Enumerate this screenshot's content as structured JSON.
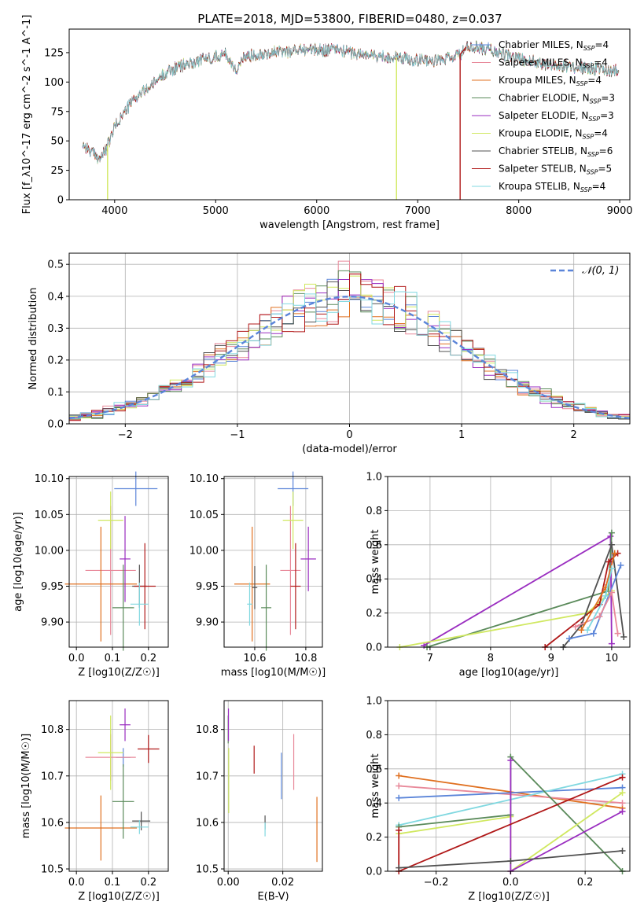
{
  "figure": {
    "title": "PLATE=2018, MJD=53800, FIBERID=0480, z=0.037"
  },
  "colors": {
    "Chabrier MILES": "#5b85d9",
    "Salpeter MILES": "#e8899a",
    "Kroupa MILES": "#e07020",
    "Chabrier ELODIE": "#5a8a5a",
    "Salpeter ELODIE": "#9a2dc0",
    "Kroupa ELODIE": "#d0e860",
    "Chabrier STELIB": "#505050",
    "Salpeter STELIB": "#b01818",
    "Kroupa STELIB": "#80d8e0",
    "normal": "#5b85d9"
  },
  "chart_data": [
    {
      "id": "spectrum",
      "type": "line",
      "xlabel": "wavelength [Angstrom, rest frame]",
      "ylabel": "Flux [f_λ10^-17 erg cm^-2 s^-1 A^-1]",
      "xlim": [
        3550,
        9100
      ],
      "ylim": [
        0,
        145
      ],
      "xticks": [
        4000,
        5000,
        6000,
        7000,
        8000,
        9000
      ],
      "yticks": [
        0,
        25,
        50,
        75,
        100,
        125
      ],
      "legend_position": "upper right",
      "legend": [
        {
          "label": "Chabrier MILES, N",
          "sub": "SSP",
          "tail": "=4",
          "series": "Chabrier MILES"
        },
        {
          "label": "Salpeter MILES, N",
          "sub": "SSP",
          "tail": "=4",
          "series": "Salpeter MILES"
        },
        {
          "label": "Kroupa MILES, N",
          "sub": "SSP",
          "tail": "=4",
          "series": "Kroupa MILES"
        },
        {
          "label": "Chabrier ELODIE, N",
          "sub": "SSP",
          "tail": "=3",
          "series": "Chabrier ELODIE"
        },
        {
          "label": "Salpeter ELODIE, N",
          "sub": "SSP",
          "tail": "=3",
          "series": "Salpeter ELODIE"
        },
        {
          "label": "Kroupa ELODIE, N",
          "sub": "SSP",
          "tail": "=4",
          "series": "Kroupa ELODIE"
        },
        {
          "label": "Chabrier STELIB, N",
          "sub": "SSP",
          "tail": "=6",
          "series": "Chabrier STELIB"
        },
        {
          "label": "Salpeter STELIB, N",
          "sub": "SSP",
          "tail": "=5",
          "series": "Salpeter STELIB"
        },
        {
          "label": "Kroupa STELIB, N",
          "sub": "SSP",
          "tail": "=4",
          "series": "Kroupa STELIB"
        }
      ],
      "continuum": {
        "x": [
          3680,
          3750,
          3800,
          3850,
          3900,
          3950,
          4000,
          4100,
          4200,
          4300,
          4400,
          4500,
          4700,
          4900,
          5100,
          5200,
          5300,
          5500,
          5700,
          5900,
          6000,
          6200,
          6400,
          6600,
          6800,
          7000,
          7200,
          7400,
          7500,
          7700,
          7900,
          8100,
          8300,
          8500,
          8700,
          8900
        ],
        "y": [
          48,
          42,
          38,
          35,
          40,
          50,
          62,
          75,
          86,
          93,
          100,
          108,
          115,
          120,
          124,
          110,
          122,
          125,
          126,
          128,
          127,
          128,
          124,
          122,
          121,
          119,
          118,
          122,
          130,
          128,
          122,
          118,
          115,
          113,
          112,
          110
        ]
      },
      "dips": [
        {
          "series": "Kroupa ELODIE",
          "x": 3930,
          "y": 0
        },
        {
          "series": "Kroupa ELODIE",
          "x": 6790,
          "y": 0
        },
        {
          "series": "Salpeter STELIB",
          "x": 7420,
          "y": 0
        }
      ]
    },
    {
      "id": "residuals",
      "type": "bar",
      "xlabel": "(data-model)/error",
      "ylabel": "Normed distribution",
      "xlim": [
        -2.5,
        2.5
      ],
      "ylim": [
        0,
        0.535
      ],
      "xticks": [
        -2,
        -1,
        0,
        1,
        2
      ],
      "yticks": [
        0.0,
        0.1,
        0.2,
        0.3,
        0.4,
        0.5
      ],
      "grid": true,
      "legend_position": "upper right",
      "legend": [
        {
          "label": "𝒩(0, 1)",
          "series": "normal"
        }
      ],
      "bin_width": 0.1
    },
    {
      "id": "age-vs-Z",
      "type": "scatter",
      "xlabel": "Z [log10(Z/Z☉)]",
      "ylabel": "age  [log10(age/yr)]",
      "xlim": [
        -0.02,
        0.255
      ],
      "ylim": [
        9.865,
        10.103
      ],
      "xticks": [
        0.0,
        0.1,
        0.2
      ],
      "yticks": [
        9.9,
        9.95,
        10.0,
        10.05,
        10.1
      ],
      "grid": true,
      "points": [
        {
          "series": "Chabrier MILES",
          "x": 0.165,
          "y": 10.086,
          "xerr": 0.06,
          "yerr": 0.024
        },
        {
          "series": "Salpeter MILES",
          "x": 0.095,
          "y": 9.972,
          "xerr": 0.07,
          "yerr": 0.09
        },
        {
          "series": "Kroupa MILES",
          "x": 0.068,
          "y": 9.953,
          "xerr": 0.1,
          "yerr": 0.08
        },
        {
          "series": "Chabrier ELODIE",
          "x": 0.13,
          "y": 9.92,
          "xerr": 0.03,
          "yerr": 0.06
        },
        {
          "series": "Salpeter ELODIE",
          "x": 0.135,
          "y": 9.988,
          "xerr": 0.015,
          "yerr": 0.06
        },
        {
          "series": "Kroupa ELODIE",
          "x": 0.095,
          "y": 10.042,
          "xerr": 0.035,
          "yerr": 0.04
        },
        {
          "series": "Chabrier STELIB",
          "x": 0.175,
          "y": 9.95,
          "xerr": 0.02,
          "yerr": 0.03
        },
        {
          "series": "Salpeter STELIB",
          "x": 0.19,
          "y": 9.95,
          "xerr": 0.03,
          "yerr": 0.06
        },
        {
          "series": "Kroupa STELIB",
          "x": 0.175,
          "y": 9.925,
          "xerr": 0.025,
          "yerr": 0.03
        }
      ]
    },
    {
      "id": "age-vs-mass",
      "type": "scatter",
      "xlabel": "mass [log10(M/M☉)]",
      "ylabel": "",
      "xlim": [
        10.48,
        10.865
      ],
      "ylim": [
        9.865,
        10.103
      ],
      "xticks": [
        10.6,
        10.8
      ],
      "yticks": [
        9.9,
        9.95,
        10.0,
        10.05,
        10.1
      ],
      "grid": true,
      "points": [
        {
          "series": "Chabrier MILES",
          "x": 10.75,
          "y": 10.086,
          "xerr": 0.06,
          "yerr": 0.024
        },
        {
          "series": "Salpeter MILES",
          "x": 10.74,
          "y": 9.972,
          "xerr": 0.04,
          "yerr": 0.09
        },
        {
          "series": "Kroupa MILES",
          "x": 10.59,
          "y": 9.953,
          "xerr": 0.07,
          "yerr": 0.08
        },
        {
          "series": "Chabrier ELODIE",
          "x": 10.645,
          "y": 9.92,
          "xerr": 0.02,
          "yerr": 0.06
        },
        {
          "series": "Salpeter ELODIE",
          "x": 10.81,
          "y": 9.988,
          "xerr": 0.03,
          "yerr": 0.045
        },
        {
          "series": "Kroupa ELODIE",
          "x": 10.75,
          "y": 10.042,
          "xerr": 0.04,
          "yerr": 0.04
        },
        {
          "series": "Chabrier STELIB",
          "x": 10.6,
          "y": 9.948,
          "xerr": 0.01,
          "yerr": 0.03
        },
        {
          "series": "Salpeter STELIB",
          "x": 10.76,
          "y": 9.95,
          "xerr": 0.02,
          "yerr": 0.06
        },
        {
          "series": "Kroupa STELIB",
          "x": 10.58,
          "y": 9.925,
          "xerr": 0.01,
          "yerr": 0.03
        }
      ]
    },
    {
      "id": "massweight-vs-age",
      "type": "line",
      "xlabel": "age  [log10(age/yr)]",
      "ylabel": "mass weight",
      "xlim": [
        6.3,
        10.3
      ],
      "ylim": [
        0,
        1.0
      ],
      "xticks": [
        7,
        8,
        9,
        10
      ],
      "yticks": [
        0.0,
        0.2,
        0.4,
        0.6,
        0.8,
        1.0
      ],
      "grid": true,
      "series": [
        {
          "series": "Salpeter ELODIE",
          "x": [
            6.9,
            9.98,
            10.0
          ],
          "y": [
            0.01,
            0.65,
            0.02
          ]
        },
        {
          "series": "Chabrier ELODIE",
          "x": [
            6.95,
            9.95,
            10.0
          ],
          "y": [
            0.0,
            0.33,
            0.67
          ]
        },
        {
          "series": "Kroupa ELODIE",
          "x": [
            6.5,
            9.6,
            10.0
          ],
          "y": [
            0.0,
            0.2,
            0.33
          ]
        },
        {
          "series": "Salpeter STELIB",
          "x": [
            8.9,
            9.8,
            9.95,
            10.1
          ],
          "y": [
            0.0,
            0.25,
            0.5,
            0.55
          ]
        },
        {
          "series": "Chabrier STELIB",
          "x": [
            9.2,
            9.5,
            10.0,
            10.2
          ],
          "y": [
            0.0,
            0.13,
            0.6,
            0.06
          ]
        },
        {
          "series": "Chabrier MILES",
          "x": [
            9.3,
            9.7,
            10.15
          ],
          "y": [
            0.05,
            0.08,
            0.48
          ]
        },
        {
          "series": "Salpeter MILES",
          "x": [
            9.4,
            9.8,
            10.0,
            10.1
          ],
          "y": [
            0.12,
            0.18,
            0.32,
            0.08
          ]
        },
        {
          "series": "Kroupa MILES",
          "x": [
            9.5,
            9.9,
            10.05
          ],
          "y": [
            0.1,
            0.35,
            0.55
          ]
        },
        {
          "series": "Kroupa STELIB",
          "x": [
            9.6,
            9.9,
            10.0
          ],
          "y": [
            0.1,
            0.3,
            0.46
          ]
        }
      ]
    },
    {
      "id": "mass-vs-Z",
      "type": "scatter",
      "xlabel": "Z [log10(Z/Z☉)]",
      "ylabel": "mass [log10(M/M☉)]",
      "xlim": [
        -0.02,
        0.255
      ],
      "ylim": [
        10.495,
        10.862
      ],
      "xticks": [
        0.0,
        0.1,
        0.2
      ],
      "yticks": [
        10.5,
        10.6,
        10.7,
        10.8
      ],
      "grid": true,
      "points": [
        {
          "series": "Chabrier MILES",
          "x": 0.13,
          "y": 10.74,
          "xerr": 0.02,
          "yerr": 0.02
        },
        {
          "series": "Salpeter MILES",
          "x": 0.095,
          "y": 10.74,
          "xerr": 0.07,
          "yerr": 0.05
        },
        {
          "series": "Kroupa MILES",
          "x": 0.068,
          "y": 10.588,
          "xerr": 0.1,
          "yerr": 0.07
        },
        {
          "series": "Chabrier ELODIE",
          "x": 0.13,
          "y": 10.645,
          "xerr": 0.03,
          "yerr": 0.08
        },
        {
          "series": "Salpeter ELODIE",
          "x": 0.135,
          "y": 10.81,
          "xerr": 0.015,
          "yerr": 0.035
        },
        {
          "series": "Kroupa ELODIE",
          "x": 0.095,
          "y": 10.75,
          "xerr": 0.035,
          "yerr": 0.08
        },
        {
          "series": "Chabrier STELIB",
          "x": 0.18,
          "y": 10.603,
          "xerr": 0.025,
          "yerr": 0.02
        },
        {
          "series": "Salpeter STELIB",
          "x": 0.2,
          "y": 10.758,
          "xerr": 0.03,
          "yerr": 0.03
        },
        {
          "series": "Kroupa STELIB",
          "x": 0.175,
          "y": 10.59,
          "xerr": 0.025,
          "yerr": 0.015
        }
      ]
    },
    {
      "id": "mass-vs-EBV",
      "type": "scatter",
      "xlabel": "E(B-V)",
      "ylabel": "",
      "xlim": [
        -0.0015,
        0.0345
      ],
      "ylim": [
        10.495,
        10.862
      ],
      "xticks": [
        0.0,
        0.02
      ],
      "yticks": [
        10.5,
        10.6,
        10.7,
        10.8
      ],
      "grid": true,
      "points": [
        {
          "series": "Chabrier MILES",
          "x": 0.0195,
          "y": 10.7,
          "xerr": 0,
          "yerr": 0.05
        },
        {
          "series": "Salpeter MILES",
          "x": 0.024,
          "y": 10.73,
          "xerr": 0,
          "yerr": 0.06
        },
        {
          "series": "Kroupa MILES",
          "x": 0.0325,
          "y": 10.585,
          "xerr": 0,
          "yerr": 0.07
        },
        {
          "series": "Chabrier ELODIE",
          "x": 0.0,
          "y": 10.8,
          "xerr": 0,
          "yerr": 0.03
        },
        {
          "series": "Salpeter ELODIE",
          "x": 0.0001,
          "y": 10.81,
          "xerr": 0,
          "yerr": 0.035
        },
        {
          "series": "Kroupa ELODIE",
          "x": 0.0002,
          "y": 10.69,
          "xerr": 0,
          "yerr": 0.07
        },
        {
          "series": "Chabrier STELIB",
          "x": 0.0135,
          "y": 10.6,
          "xerr": 0,
          "yerr": 0.015
        },
        {
          "series": "Salpeter STELIB",
          "x": 0.0095,
          "y": 10.735,
          "xerr": 0,
          "yerr": 0.03
        },
        {
          "series": "Kroupa STELIB",
          "x": 0.0135,
          "y": 10.585,
          "xerr": 0,
          "yerr": 0.015
        }
      ]
    },
    {
      "id": "massweight-vs-Z",
      "type": "line",
      "xlabel": "Z [log10(Z/Z☉)]",
      "ylabel": "mass weight",
      "xlim": [
        -0.33,
        0.32
      ],
      "ylim": [
        0,
        1.0
      ],
      "xticks": [
        -0.2,
        0.0,
        0.2
      ],
      "yticks": [
        0.0,
        0.2,
        0.4,
        0.6,
        0.8,
        1.0
      ],
      "grid": true,
      "series": [
        {
          "series": "Kroupa MILES",
          "x": [
            -0.3,
            0.3
          ],
          "y": [
            0.56,
            0.37
          ]
        },
        {
          "series": "Salpeter MILES",
          "x": [
            -0.3,
            0.3
          ],
          "y": [
            0.5,
            0.4
          ]
        },
        {
          "series": "Chabrier MILES",
          "x": [
            -0.3,
            0.3
          ],
          "y": [
            0.43,
            0.49
          ]
        },
        {
          "series": "Kroupa STELIB",
          "x": [
            -0.3,
            0.3
          ],
          "y": [
            0.27,
            0.57
          ]
        },
        {
          "series": "Chabrier ELODIE",
          "x": [
            -0.3,
            0.0,
            0.0,
            0.3
          ],
          "y": [
            0.26,
            0.33,
            0.67,
            0.0
          ]
        },
        {
          "series": "Kroupa ELODIE",
          "x": [
            -0.3,
            0.0,
            0.0,
            0.3
          ],
          "y": [
            0.22,
            0.32,
            0.0,
            0.46
          ]
        },
        {
          "series": "Salpeter ELODIE",
          "x": [
            0.0,
            0.0,
            0.3
          ],
          "y": [
            0.65,
            0.0,
            0.35
          ]
        },
        {
          "series": "Salpeter STELIB",
          "x": [
            -0.3,
            -0.3,
            0.3
          ],
          "y": [
            0.24,
            0.0,
            0.55
          ]
        },
        {
          "series": "Chabrier STELIB",
          "x": [
            -0.3,
            0.0,
            0.3
          ],
          "y": [
            0.02,
            0.06,
            0.12
          ]
        }
      ]
    }
  ]
}
